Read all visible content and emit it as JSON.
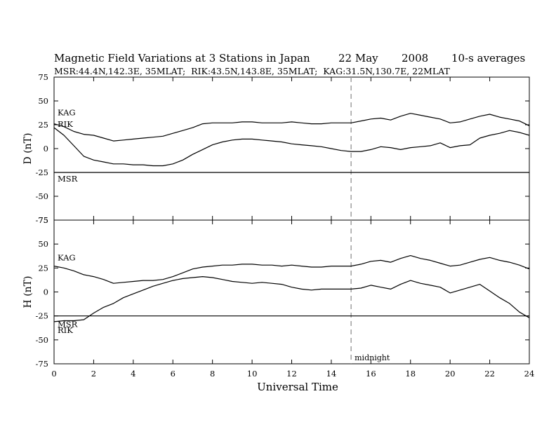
{
  "chart_data": {
    "type": "line",
    "title": "Magnetic Field Variations at 3 Stations in Japan",
    "date": "22 May",
    "year": "2008",
    "averaging": "10-s averages",
    "subtitle": "MSR:44.4N,142.3E, 35MLAT;  RIK:43.5N,143.8E, 35MLAT;  KAG:31.5N,130.7E, 22MLAT",
    "xlabel": "Universal Time",
    "xlim": [
      0,
      24
    ],
    "xticks": [
      0,
      2,
      4,
      6,
      8,
      10,
      12,
      14,
      16,
      18,
      20,
      22,
      24
    ],
    "annotation": {
      "text": "midnight",
      "x": 15
    },
    "panels": [
      {
        "ylabel": "D (nT)",
        "ylim": [
          -75,
          75
        ],
        "yticks": [
          75,
          50,
          25,
          0,
          -25,
          -50,
          -75
        ],
        "series": [
          {
            "name": "KAG",
            "x": [
              0,
              0.5,
              1,
              1.5,
              2,
              2.5,
              3,
              3.5,
              4,
              4.5,
              5,
              5.5,
              6,
              6.5,
              7,
              7.5,
              8,
              8.5,
              9,
              9.5,
              10,
              10.5,
              11,
              11.5,
              12,
              12.5,
              13,
              13.5,
              14,
              14.5,
              15,
              15.5,
              16,
              16.5,
              17,
              17.5,
              18,
              18.5,
              19,
              19.5,
              20,
              20.5,
              21,
              21.5,
              22,
              22.5,
              23,
              23.5,
              24
            ],
            "values": [
              26,
              23,
              18,
              15,
              14,
              11,
              8,
              9,
              10,
              11,
              12,
              13,
              16,
              19,
              22,
              26,
              27,
              27,
              27,
              28,
              28,
              27,
              27,
              27,
              28,
              27,
              26,
              26,
              27,
              27,
              27,
              29,
              31,
              32,
              30,
              34,
              37,
              35,
              33,
              31,
              27,
              28,
              31,
              34,
              36,
              33,
              31,
              29,
              24
            ]
          },
          {
            "name": "RIK",
            "x": [
              0,
              0.5,
              1,
              1.5,
              2,
              2.5,
              3,
              3.5,
              4,
              4.5,
              5,
              5.5,
              6,
              6.5,
              7,
              7.5,
              8,
              8.5,
              9,
              9.5,
              10,
              10.5,
              11,
              11.5,
              12,
              12.5,
              13,
              13.5,
              14,
              14.5,
              15,
              15.5,
              16,
              16.5,
              17,
              17.5,
              18,
              18.5,
              19,
              19.5,
              20,
              20.5,
              21,
              21.5,
              22,
              22.5,
              23,
              23.5,
              24
            ],
            "values": [
              22,
              14,
              3,
              -8,
              -12,
              -14,
              -16,
              -16,
              -17,
              -17,
              -18,
              -18,
              -16,
              -12,
              -6,
              -1,
              4,
              7,
              9,
              10,
              10,
              9,
              8,
              7,
              5,
              4,
              3,
              2,
              0,
              -2,
              -3,
              -3,
              -1,
              2,
              1,
              -1,
              1,
              2,
              3,
              6,
              1,
              3,
              4,
              11,
              14,
              16,
              19,
              17,
              14
            ]
          },
          {
            "name": "MSR",
            "x": [
              0,
              24
            ],
            "values": [
              -25,
              -25
            ]
          }
        ]
      },
      {
        "ylabel": "H (nT)",
        "ylim": [
          -75,
          75
        ],
        "yticks": [
          75,
          50,
          25,
          0,
          -25,
          -50,
          -75
        ],
        "series": [
          {
            "name": "KAG",
            "x": [
              0,
              0.5,
              1,
              1.5,
              2,
              2.5,
              3,
              3.5,
              4,
              4.5,
              5,
              5.5,
              6,
              6.5,
              7,
              7.5,
              8,
              8.5,
              9,
              9.5,
              10,
              10.5,
              11,
              11.5,
              12,
              12.5,
              13,
              13.5,
              14,
              14.5,
              15,
              15.5,
              16,
              16.5,
              17,
              17.5,
              18,
              18.5,
              19,
              19.5,
              20,
              20.5,
              21,
              21.5,
              22,
              22.5,
              23,
              23.5,
              24
            ],
            "values": [
              27,
              25,
              22,
              18,
              16,
              13,
              9,
              10,
              11,
              12,
              12,
              13,
              16,
              20,
              24,
              26,
              27,
              28,
              28,
              29,
              29,
              28,
              28,
              27,
              28,
              27,
              26,
              26,
              27,
              27,
              27,
              29,
              32,
              33,
              31,
              35,
              38,
              35,
              33,
              30,
              27,
              28,
              31,
              34,
              36,
              33,
              31,
              28,
              24
            ]
          },
          {
            "name": "RIK",
            "x": [
              0,
              0.5,
              1,
              1.5,
              2,
              2.5,
              3,
              3.5,
              4,
              4.5,
              5,
              5.5,
              6,
              6.5,
              7,
              7.5,
              8,
              8.5,
              9,
              9.5,
              10,
              10.5,
              11,
              11.5,
              12,
              12.5,
              13,
              13.5,
              14,
              14.5,
              15,
              15.5,
              16,
              16.5,
              17,
              17.5,
              18,
              18.5,
              19,
              19.5,
              20,
              20.5,
              21,
              21.5,
              22,
              22.5,
              23,
              23.5,
              24
            ],
            "values": [
              -31,
              -30,
              -30,
              -29,
              -22,
              -16,
              -12,
              -6,
              -2,
              2,
              6,
              9,
              12,
              14,
              15,
              16,
              15,
              13,
              11,
              10,
              9,
              10,
              9,
              8,
              5,
              3,
              2,
              3,
              3,
              3,
              3,
              4,
              7,
              5,
              3,
              8,
              12,
              9,
              7,
              5,
              -1,
              2,
              5,
              8,
              1,
              -6,
              -12,
              -21,
              -27
            ]
          },
          {
            "name": "MSR",
            "x": [
              0,
              24
            ],
            "values": [
              -25,
              -25
            ]
          }
        ]
      }
    ]
  }
}
